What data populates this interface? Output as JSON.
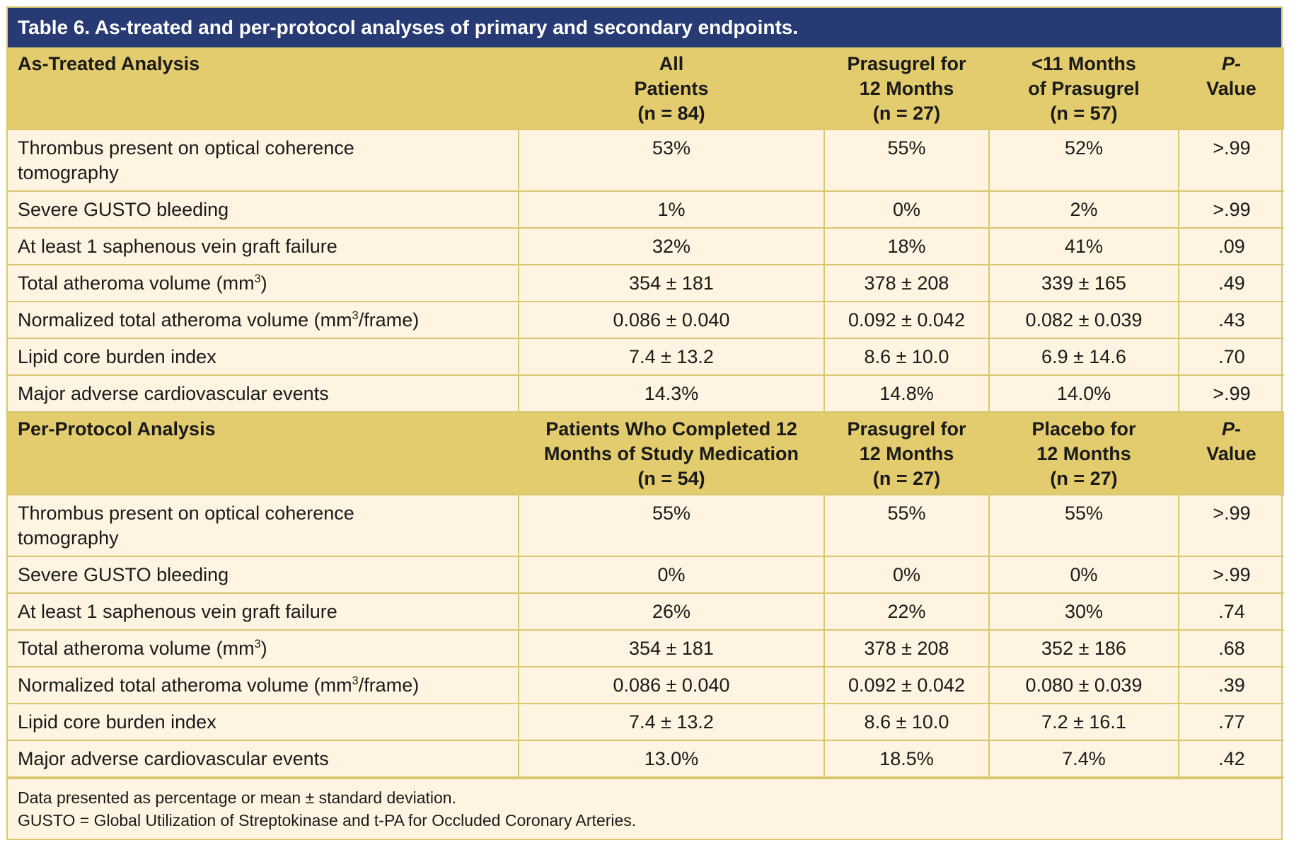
{
  "title": "Table 6. As-treated and per-protocol analyses of primary and secondary endpoints.",
  "sections": [
    {
      "header": {
        "label": "As-Treated Analysis",
        "columns": [
          [
            "All",
            "Patients",
            "(n = 84)"
          ],
          [
            "Prasugrel for",
            "12 Months",
            "(n = 27)"
          ],
          [
            "<11 Months",
            "of Prasugrel",
            "(n = 57)"
          ]
        ],
        "p_label_1": "P-",
        "p_label_2": "Value"
      },
      "rows": [
        {
          "label_a": "Thrombus present on optical coherence",
          "label_b": "tomography",
          "values": [
            "53%",
            "55%",
            "52%",
            ">.99"
          ]
        },
        {
          "label_a": "Severe GUSTO bleeding",
          "values": [
            "1%",
            "0%",
            "2%",
            ">.99"
          ]
        },
        {
          "label_a": "At least 1 saphenous vein graft failure",
          "values": [
            "32%",
            "18%",
            "41%",
            ".09"
          ]
        },
        {
          "label_a": "Total atheroma volume (mm",
          "sup": "3",
          "label_c": ")",
          "values": [
            "354 ± 181",
            "378 ± 208",
            "339 ± 165",
            ".49"
          ]
        },
        {
          "label_a": "Normalized total atheroma volume (mm",
          "sup": "3",
          "label_c": "/frame)",
          "values": [
            "0.086 ± 0.040",
            "0.092 ± 0.042",
            "0.082 ± 0.039",
            ".43"
          ]
        },
        {
          "label_a": "Lipid core burden index",
          "values": [
            "7.4 ± 13.2",
            "8.6 ± 10.0",
            "6.9 ± 14.6",
            ".70"
          ]
        },
        {
          "label_a": "Major adverse cardiovascular events",
          "values": [
            "14.3%",
            "14.8%",
            "14.0%",
            ">.99"
          ]
        }
      ]
    },
    {
      "header": {
        "label": "Per-Protocol Analysis",
        "columns": [
          [
            "Patients Who Completed 12",
            "Months of Study Medication",
            "(n = 54)"
          ],
          [
            "Prasugrel for",
            "12 Months",
            "(n = 27)"
          ],
          [
            "Placebo for",
            "12 Months",
            "(n = 27)"
          ]
        ],
        "p_label_1": "P-",
        "p_label_2": "Value"
      },
      "rows": [
        {
          "label_a": "Thrombus present on optical coherence",
          "label_b": "tomography",
          "values": [
            "55%",
            "55%",
            "55%",
            ">.99"
          ]
        },
        {
          "label_a": "Severe GUSTO bleeding",
          "values": [
            "0%",
            "0%",
            "0%",
            ">.99"
          ]
        },
        {
          "label_a": "At least 1 saphenous vein graft failure",
          "values": [
            "26%",
            "22%",
            "30%",
            ".74"
          ]
        },
        {
          "label_a": "Total atheroma volume (mm",
          "sup": "3",
          "label_c": ")",
          "values": [
            "354 ± 181",
            "378 ± 208",
            "352 ± 186",
            ".68"
          ]
        },
        {
          "label_a": "Normalized total atheroma volume (mm",
          "sup": "3",
          "label_c": "/frame)",
          "values": [
            "0.086 ± 0.040",
            "0.092 ± 0.042",
            "0.080 ± 0.039",
            ".39"
          ]
        },
        {
          "label_a": "Lipid core burden index",
          "values": [
            "7.4 ± 13.2",
            "8.6 ± 10.0",
            "7.2 ± 16.1",
            ".77"
          ]
        },
        {
          "label_a": "Major adverse cardiovascular events",
          "values": [
            "13.0%",
            "18.5%",
            "7.4%",
            ".42"
          ]
        }
      ]
    }
  ],
  "footnotes": [
    "Data presented as percentage or mean ± standard deviation.",
    "GUSTO = Global Utilization of Streptokinase and t-PA for Occluded Coronary Arteries."
  ],
  "colors": {
    "title_bg": "#283a73",
    "header_bg": "#e2cc6e",
    "row_bg": "#fef4e1",
    "border": "#d9c770"
  }
}
